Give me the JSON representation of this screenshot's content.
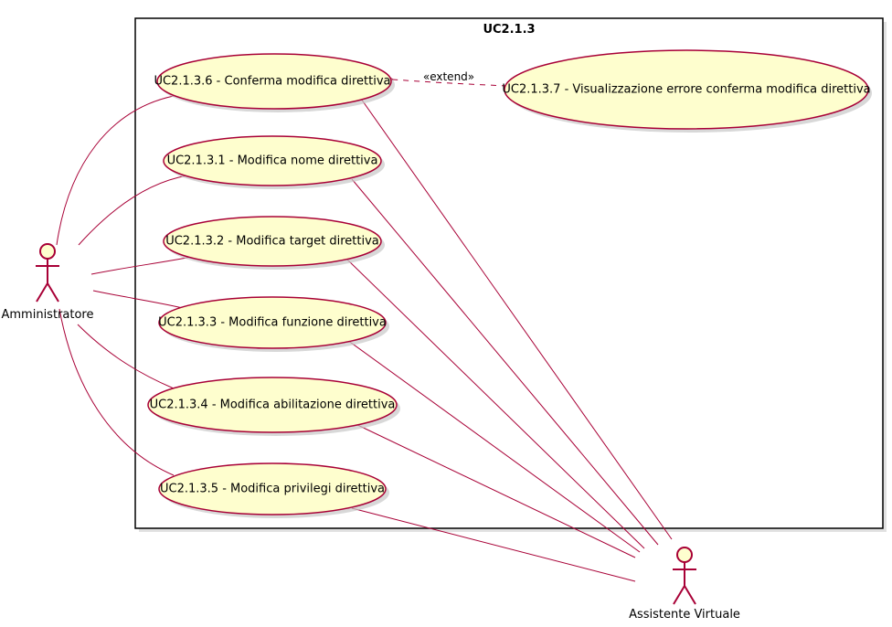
{
  "system": {
    "title": "UC2.1.3"
  },
  "actors": {
    "admin": {
      "label": "Amministratore"
    },
    "assistant": {
      "label": "Assistente Virtuale"
    }
  },
  "use_cases": {
    "uc6": "UC2.1.3.6 - Conferma modifica direttiva",
    "uc7": "UC2.1.3.7 - Visualizzazione errore conferma modifica direttiva",
    "uc1": "UC2.1.3.1 - Modifica nome direttiva",
    "uc2": "UC2.1.3.2 - Modifica target direttiva",
    "uc3": "UC2.1.3.3 - Modifica funzione direttiva",
    "uc4": "UC2.1.3.4 - Modifica abilitazione direttiva",
    "uc5": "UC2.1.3.5 - Modifica privilegi direttiva"
  },
  "relations": {
    "extend_label": "«extend»"
  },
  "colors": {
    "usecase_fill": "#FEFECE",
    "border": "#A80036",
    "boundary": "#000000",
    "shadow": "#C8C8C8"
  }
}
